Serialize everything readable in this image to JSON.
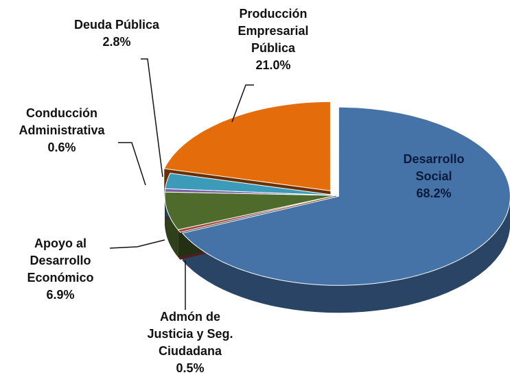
{
  "chart_data": {
    "type": "pie",
    "categories": [
      "Desarrollo Social",
      "Admón de Justicia y Seg. Ciudadana",
      "Apoyo al Desarrollo Económico",
      "Conducción Administrativa",
      "Deuda Pública",
      "Producción Empresarial Pública"
    ],
    "values": [
      68.2,
      0.5,
      6.9,
      0.6,
      2.8,
      21.0
    ],
    "value_labels": [
      "68.2%",
      "0.5%",
      "6.9%",
      "0.6%",
      "2.8%",
      "21.0%"
    ],
    "colors": [
      "#4572a7",
      "#aa4643",
      "#4e6b2b",
      "#7a5fa3",
      "#3c9bb9",
      "#e46c0a"
    ]
  }
}
